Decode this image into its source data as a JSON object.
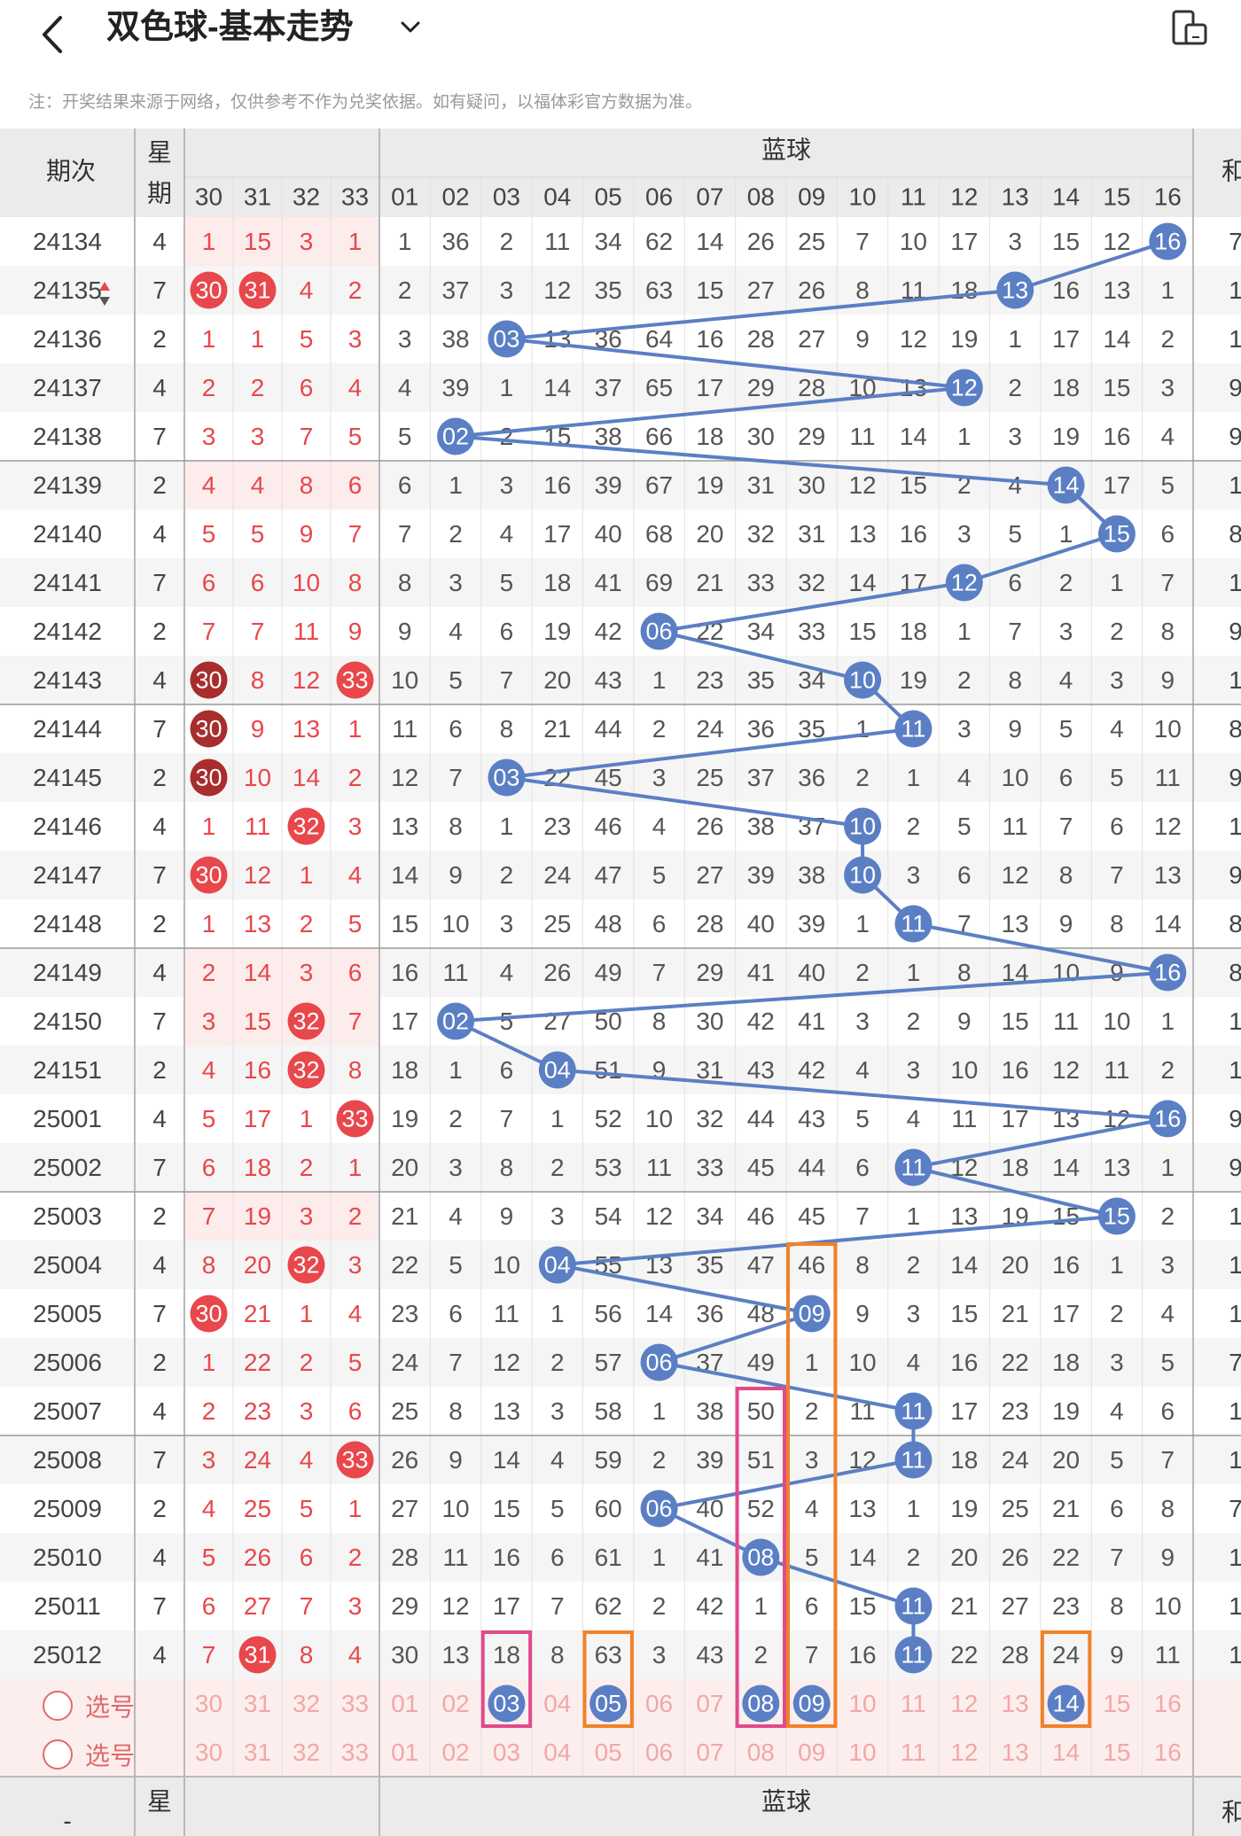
{
  "header": {
    "title": "双色球-基本走势"
  },
  "notice": "注：开奖结果来源于网络，仅供参考不作为兑奖依据。如有疑问，以福体彩官方数据为准。",
  "table": {
    "col_issue": "期次",
    "col_week": "星期",
    "week_part1": "星",
    "week_part2": "期",
    "blue_section": "蓝球",
    "sum_label": "和",
    "red_visible_cols": [
      "30",
      "31",
      "32",
      "33"
    ],
    "blue_cols": [
      "01",
      "02",
      "03",
      "04",
      "05",
      "06",
      "07",
      "08",
      "09",
      "10",
      "11",
      "12",
      "13",
      "14",
      "15",
      "16"
    ],
    "rows": [
      {
        "issue": "24134",
        "week": "4",
        "red": [
          "1",
          "15",
          "3",
          "1"
        ],
        "blue": [
          "1",
          "36",
          "2",
          "11",
          "34",
          "62",
          "14",
          "26",
          "25",
          "7",
          "10",
          "17",
          "3",
          "15",
          "12",
          "16"
        ],
        "sum": "7"
      },
      {
        "issue": "24135",
        "week": "7",
        "red": [
          "30",
          "31",
          "4",
          "2"
        ],
        "blue": [
          "2",
          "37",
          "3",
          "12",
          "35",
          "63",
          "15",
          "27",
          "26",
          "8",
          "11",
          "18",
          "13",
          "16",
          "13",
          "1"
        ],
        "sum": "1"
      },
      {
        "issue": "24136",
        "week": "2",
        "red": [
          "1",
          "1",
          "5",
          "3"
        ],
        "blue": [
          "3",
          "38",
          "03",
          "13",
          "36",
          "64",
          "16",
          "28",
          "27",
          "9",
          "12",
          "19",
          "1",
          "17",
          "14",
          "2"
        ],
        "sum": "1"
      },
      {
        "issue": "24137",
        "week": "4",
        "red": [
          "2",
          "2",
          "6",
          "4"
        ],
        "blue": [
          "4",
          "39",
          "1",
          "14",
          "37",
          "65",
          "17",
          "29",
          "28",
          "10",
          "13",
          "12",
          "2",
          "18",
          "15",
          "3"
        ],
        "sum": "9"
      },
      {
        "issue": "24138",
        "week": "7",
        "red": [
          "3",
          "3",
          "7",
          "5"
        ],
        "blue": [
          "5",
          "02",
          "2",
          "15",
          "38",
          "66",
          "18",
          "30",
          "29",
          "11",
          "14",
          "1",
          "3",
          "19",
          "16",
          "4"
        ],
        "sum": "9"
      },
      {
        "issue": "24139",
        "week": "2",
        "red": [
          "4",
          "4",
          "8",
          "6"
        ],
        "blue": [
          "6",
          "1",
          "3",
          "16",
          "39",
          "67",
          "19",
          "31",
          "30",
          "12",
          "15",
          "2",
          "4",
          "14",
          "17",
          "5"
        ],
        "sum": "1"
      },
      {
        "issue": "24140",
        "week": "4",
        "red": [
          "5",
          "5",
          "9",
          "7"
        ],
        "blue": [
          "7",
          "2",
          "4",
          "17",
          "40",
          "68",
          "20",
          "32",
          "31",
          "13",
          "16",
          "3",
          "5",
          "1",
          "15",
          "6"
        ],
        "sum": "8"
      },
      {
        "issue": "24141",
        "week": "7",
        "red": [
          "6",
          "6",
          "10",
          "8"
        ],
        "blue": [
          "8",
          "3",
          "5",
          "18",
          "41",
          "69",
          "21",
          "33",
          "32",
          "14",
          "17",
          "12",
          "6",
          "2",
          "1",
          "7"
        ],
        "sum": "1"
      },
      {
        "issue": "24142",
        "week": "2",
        "red": [
          "7",
          "7",
          "11",
          "9"
        ],
        "blue": [
          "9",
          "4",
          "6",
          "19",
          "42",
          "06",
          "22",
          "34",
          "33",
          "15",
          "18",
          "1",
          "7",
          "3",
          "2",
          "8"
        ],
        "sum": "9"
      },
      {
        "issue": "24143",
        "week": "4",
        "red": [
          "30",
          "8",
          "12",
          "33"
        ],
        "blue": [
          "10",
          "5",
          "7",
          "20",
          "43",
          "1",
          "23",
          "35",
          "34",
          "10",
          "19",
          "2",
          "8",
          "4",
          "3",
          "9"
        ],
        "sum": "1"
      },
      {
        "issue": "24144",
        "week": "7",
        "red": [
          "30",
          "9",
          "13",
          "1"
        ],
        "blue": [
          "11",
          "6",
          "8",
          "21",
          "44",
          "2",
          "24",
          "36",
          "35",
          "1",
          "11",
          "3",
          "9",
          "5",
          "4",
          "10"
        ],
        "sum": "8"
      },
      {
        "issue": "24145",
        "week": "2",
        "red": [
          "30",
          "10",
          "14",
          "2"
        ],
        "blue": [
          "12",
          "7",
          "03",
          "22",
          "45",
          "3",
          "25",
          "37",
          "36",
          "2",
          "1",
          "4",
          "10",
          "6",
          "5",
          "11"
        ],
        "sum": "9"
      },
      {
        "issue": "24146",
        "week": "4",
        "red": [
          "1",
          "11",
          "32",
          "3"
        ],
        "blue": [
          "13",
          "8",
          "1",
          "23",
          "46",
          "4",
          "26",
          "38",
          "37",
          "10",
          "2",
          "5",
          "11",
          "7",
          "6",
          "12"
        ],
        "sum": "1"
      },
      {
        "issue": "24147",
        "week": "7",
        "red": [
          "30",
          "12",
          "1",
          "4"
        ],
        "blue": [
          "14",
          "9",
          "2",
          "24",
          "47",
          "5",
          "27",
          "39",
          "38",
          "10",
          "3",
          "6",
          "12",
          "8",
          "7",
          "13"
        ],
        "sum": "9"
      },
      {
        "issue": "24148",
        "week": "2",
        "red": [
          "1",
          "13",
          "2",
          "5"
        ],
        "blue": [
          "15",
          "10",
          "3",
          "25",
          "48",
          "6",
          "28",
          "40",
          "39",
          "1",
          "11",
          "7",
          "13",
          "9",
          "8",
          "14"
        ],
        "sum": "8"
      },
      {
        "issue": "24149",
        "week": "4",
        "red": [
          "2",
          "14",
          "3",
          "6"
        ],
        "blue": [
          "16",
          "11",
          "4",
          "26",
          "49",
          "7",
          "29",
          "41",
          "40",
          "2",
          "1",
          "8",
          "14",
          "10",
          "9",
          "16"
        ],
        "sum": "8"
      },
      {
        "issue": "24150",
        "week": "7",
        "red": [
          "3",
          "15",
          "32",
          "7"
        ],
        "blue": [
          "17",
          "02",
          "5",
          "27",
          "50",
          "8",
          "30",
          "42",
          "41",
          "3",
          "2",
          "9",
          "15",
          "11",
          "10",
          "1"
        ],
        "sum": "1"
      },
      {
        "issue": "24151",
        "week": "2",
        "red": [
          "4",
          "16",
          "32",
          "8"
        ],
        "blue": [
          "18",
          "1",
          "6",
          "04",
          "51",
          "9",
          "31",
          "43",
          "42",
          "4",
          "3",
          "10",
          "16",
          "12",
          "11",
          "2"
        ],
        "sum": "1"
      },
      {
        "issue": "25001",
        "week": "4",
        "red": [
          "5",
          "17",
          "1",
          "33"
        ],
        "blue": [
          "19",
          "2",
          "7",
          "1",
          "52",
          "10",
          "32",
          "44",
          "43",
          "5",
          "4",
          "11",
          "17",
          "13",
          "12",
          "16"
        ],
        "sum": "9"
      },
      {
        "issue": "25002",
        "week": "7",
        "red": [
          "6",
          "18",
          "2",
          "1"
        ],
        "blue": [
          "20",
          "3",
          "8",
          "2",
          "53",
          "11",
          "33",
          "45",
          "44",
          "6",
          "11",
          "12",
          "18",
          "14",
          "13",
          "1"
        ],
        "sum": "9"
      },
      {
        "issue": "25003",
        "week": "2",
        "red": [
          "7",
          "19",
          "3",
          "2"
        ],
        "blue": [
          "21",
          "4",
          "9",
          "3",
          "54",
          "12",
          "34",
          "46",
          "45",
          "7",
          "1",
          "13",
          "19",
          "15",
          "15",
          "2"
        ],
        "sum": "1"
      },
      {
        "issue": "25004",
        "week": "4",
        "red": [
          "8",
          "20",
          "32",
          "3"
        ],
        "blue": [
          "22",
          "5",
          "10",
          "04",
          "55",
          "13",
          "35",
          "47",
          "46",
          "8",
          "2",
          "14",
          "20",
          "16",
          "1",
          "3"
        ],
        "sum": "1"
      },
      {
        "issue": "25005",
        "week": "7",
        "red": [
          "30",
          "21",
          "1",
          "4"
        ],
        "blue": [
          "23",
          "6",
          "11",
          "1",
          "56",
          "14",
          "36",
          "48",
          "09",
          "9",
          "3",
          "15",
          "21",
          "17",
          "2",
          "4"
        ],
        "sum": "1"
      },
      {
        "issue": "25006",
        "week": "2",
        "red": [
          "1",
          "22",
          "2",
          "5"
        ],
        "blue": [
          "24",
          "7",
          "12",
          "2",
          "57",
          "06",
          "37",
          "49",
          "1",
          "10",
          "4",
          "16",
          "22",
          "18",
          "3",
          "5"
        ],
        "sum": "7"
      },
      {
        "issue": "25007",
        "week": "4",
        "red": [
          "2",
          "23",
          "3",
          "6"
        ],
        "blue": [
          "25",
          "8",
          "13",
          "3",
          "58",
          "1",
          "38",
          "50",
          "2",
          "11",
          "11",
          "17",
          "23",
          "19",
          "4",
          "6"
        ],
        "sum": "1"
      },
      {
        "issue": "25008",
        "week": "7",
        "red": [
          "3",
          "24",
          "4",
          "33"
        ],
        "blue": [
          "26",
          "9",
          "14",
          "4",
          "59",
          "2",
          "39",
          "51",
          "3",
          "12",
          "11",
          "18",
          "24",
          "20",
          "5",
          "7"
        ],
        "sum": "1"
      },
      {
        "issue": "25009",
        "week": "2",
        "red": [
          "4",
          "25",
          "5",
          "1"
        ],
        "blue": [
          "27",
          "10",
          "15",
          "5",
          "60",
          "06",
          "40",
          "52",
          "4",
          "13",
          "1",
          "19",
          "25",
          "21",
          "6",
          "8"
        ],
        "sum": "7"
      },
      {
        "issue": "25010",
        "week": "4",
        "red": [
          "5",
          "26",
          "6",
          "2"
        ],
        "blue": [
          "28",
          "11",
          "16",
          "6",
          "61",
          "1",
          "41",
          "08",
          "5",
          "14",
          "2",
          "20",
          "26",
          "22",
          "7",
          "9"
        ],
        "sum": "1"
      },
      {
        "issue": "25011",
        "week": "7",
        "red": [
          "6",
          "27",
          "7",
          "3"
        ],
        "blue": [
          "29",
          "12",
          "17",
          "7",
          "62",
          "2",
          "42",
          "1",
          "6",
          "15",
          "11",
          "21",
          "27",
          "23",
          "8",
          "10"
        ],
        "sum": "1"
      },
      {
        "issue": "25012",
        "week": "4",
        "red": [
          "7",
          "31",
          "8",
          "4"
        ],
        "blue": [
          "30",
          "13",
          "18",
          "8",
          "63",
          "3",
          "43",
          "2",
          "7",
          "16",
          "11",
          "22",
          "28",
          "24",
          "9",
          "11"
        ],
        "sum": "1"
      }
    ],
    "blue_hits": [
      15,
      12,
      2,
      11,
      1,
      13,
      14,
      11,
      5,
      9,
      10,
      2,
      9,
      9,
      10,
      15,
      1,
      3,
      15,
      10,
      14,
      3,
      8,
      5,
      10,
      10,
      5,
      7,
      10,
      10
    ],
    "red_hits": [
      [],
      [
        0,
        1
      ],
      [],
      [],
      [],
      [],
      [],
      [],
      [],
      [
        0,
        3
      ],
      [
        0
      ],
      [
        0
      ],
      [
        2
      ],
      [
        0
      ],
      [],
      [],
      [
        2
      ],
      [
        2
      ],
      [
        3
      ],
      [],
      [],
      [
        2
      ],
      [
        0
      ],
      [],
      [],
      [
        3
      ],
      [],
      [],
      [],
      [
        1
      ]
    ],
    "red_faded_rows": [
      0,
      5,
      15,
      16,
      20
    ],
    "pick_label": "选号",
    "pick_rows": [
      {
        "red": [
          "30",
          "31",
          "32",
          "33"
        ],
        "blue": [
          "01",
          "02",
          "03",
          "04",
          "05",
          "06",
          "07",
          "08",
          "09",
          "10",
          "11",
          "12",
          "13",
          "14",
          "15",
          "16"
        ]
      },
      {
        "red": [
          "30",
          "31",
          "32",
          "33"
        ],
        "blue": [
          "01",
          "02",
          "03",
          "04",
          "05",
          "06",
          "07",
          "08",
          "09",
          "10",
          "11",
          "12",
          "13",
          "14",
          "15",
          "16"
        ]
      }
    ],
    "pick_selected": [
      2,
      4,
      7,
      8,
      13
    ],
    "footer_dash": "-"
  },
  "colors": {
    "red": "#e8474b",
    "darkred": "#a82d2d",
    "blue": "#5b7fc4",
    "orange": "#f08228",
    "pink": "#e14a8c"
  }
}
